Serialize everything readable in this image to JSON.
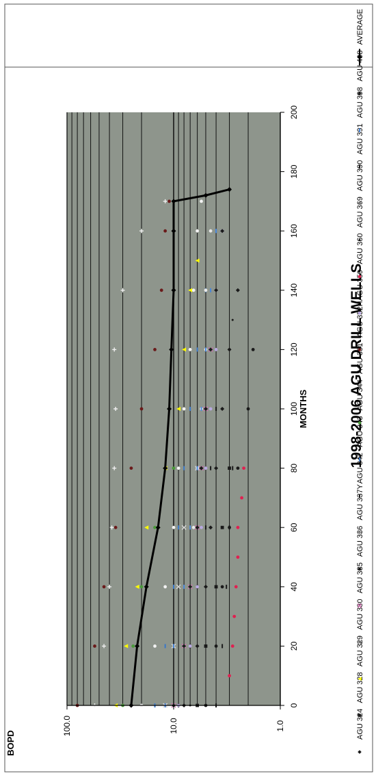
{
  "chart_data": {
    "type": "scatter",
    "title": "1998-2006 AGU DRILL WELLS",
    "xlabel": "MONTHS",
    "ylabel": "BOPD",
    "xlim": [
      0,
      200
    ],
    "ylim": [
      1,
      100
    ],
    "yscale": "log",
    "x_ticks": [
      "0",
      "20",
      "40",
      "60",
      "80",
      "100",
      "120",
      "140",
      "160",
      "180",
      "200"
    ],
    "y_ticks": [
      "1.0",
      "10.0",
      "100.0"
    ],
    "grid": "horizontal log gridlines",
    "legend_position": "right",
    "plot_background": "#8e958c",
    "series": [
      {
        "name": "AGU 324",
        "color": "#1a1a1a",
        "marker": "diamond",
        "x": [
          0,
          20,
          40,
          60,
          80,
          100,
          120,
          140
        ],
        "y": [
          8,
          6,
          5,
          4.5,
          4,
          3.5,
          3,
          2.5
        ]
      },
      {
        "name": "AGU 328",
        "color": "#1a1a1a",
        "marker": "square",
        "x": [
          0,
          20,
          40,
          60,
          80
        ],
        "y": [
          6,
          5,
          4,
          3.5,
          3
        ]
      },
      {
        "name": "AGU 329",
        "color": "#ffff00",
        "marker": "triangle",
        "x": [
          0,
          20,
          40,
          60,
          80,
          100,
          120,
          140,
          150
        ],
        "y": [
          35,
          28,
          22,
          18,
          12,
          9,
          8,
          7,
          6
        ]
      },
      {
        "name": "AGU 330",
        "color": "#d8d8d8",
        "marker": "x",
        "x": [
          0,
          20,
          40,
          60,
          80,
          100
        ],
        "y": [
          12,
          10,
          9,
          8,
          6,
          5
        ]
      },
      {
        "name": "AGU 335",
        "color": "#cc66aa",
        "marker": "x",
        "x": [
          0,
          20,
          40,
          60,
          80,
          100,
          120
        ],
        "y": [
          10,
          8,
          7,
          6,
          5.5,
          5,
          4.5
        ]
      },
      {
        "name": "AGU 336",
        "color": "#1a1a1a",
        "marker": "circle",
        "x": [
          0,
          20,
          40,
          60,
          80,
          100,
          120
        ],
        "y": [
          5,
          4,
          3.5,
          3,
          2.5,
          2,
          1.8
        ]
      },
      {
        "name": "AGU 337Y",
        "color": "#f0f0f0",
        "marker": "plus",
        "x": [
          0,
          20,
          40,
          60,
          80,
          100,
          120,
          140,
          160,
          170
        ],
        "y": [
          55,
          45,
          40,
          38,
          36,
          35,
          36,
          30,
          20,
          12
        ]
      },
      {
        "name": "AGU 342",
        "color": "#1a1a1a",
        "marker": "dash",
        "x": [
          0,
          20,
          40,
          60,
          80,
          100
        ],
        "y": [
          9,
          7,
          6,
          5,
          4.5,
          4
        ]
      },
      {
        "name": "AGU 343",
        "color": "#3a78c8",
        "marker": "dash",
        "x": [
          0,
          20,
          40,
          60,
          80,
          100,
          120,
          140,
          160
        ],
        "y": [
          15,
          12,
          10,
          9,
          8,
          7,
          6,
          5,
          4
        ]
      },
      {
        "name": "AGU 344",
        "color": "#4a9a3a",
        "marker": "circle",
        "x": [
          0,
          20,
          40,
          60,
          80
        ],
        "y": [
          30,
          24,
          20,
          15,
          10
        ]
      },
      {
        "name": "AGU 351",
        "color": "#e8e8e8",
        "marker": "circle",
        "x": [
          0,
          20,
          40,
          60,
          80,
          100,
          120,
          140,
          160
        ],
        "y": [
          10,
          8,
          7,
          6.5,
          6,
          5.5,
          5,
          5,
          4.5
        ]
      },
      {
        "name": "AGU 352H",
        "color": "#6a1a1a",
        "marker": "circle",
        "x": [
          0,
          20,
          40,
          60,
          80,
          100,
          120,
          140,
          160,
          170
        ],
        "y": [
          80,
          55,
          45,
          35,
          25,
          20,
          15,
          13,
          12,
          11
        ]
      },
      {
        "name": "AGU 359",
        "color": "#b8a8e0",
        "marker": "circle",
        "x": [
          0,
          20,
          40,
          60,
          80,
          100,
          120,
          140,
          160
        ],
        "y": [
          9,
          7,
          6,
          5.5,
          5,
          4.5,
          4,
          4,
          3.5
        ]
      },
      {
        "name": "AGU 360",
        "color": "#e02050",
        "marker": "circle",
        "x": [
          10,
          20,
          30,
          40,
          50,
          60,
          70,
          80
        ],
        "y": [
          3,
          2.8,
          2.7,
          2.6,
          2.5,
          2.5,
          2.3,
          2.2
        ]
      },
      {
        "name": "AGU 369",
        "color": "#1a1a1a",
        "marker": "dot",
        "x": [
          0,
          20,
          40,
          60,
          80,
          100,
          120,
          130
        ],
        "y": [
          7,
          6,
          5,
          4.5,
          4,
          3.5,
          3,
          2.8
        ]
      },
      {
        "name": "AGU 390",
        "color": "#f2f2f2",
        "marker": "circle",
        "x": [
          0,
          20,
          40,
          60,
          80,
          100,
          120,
          140,
          160,
          170
        ],
        "y": [
          20,
          15,
          12,
          10,
          9,
          8,
          7,
          6.5,
          6,
          5.5
        ]
      },
      {
        "name": "AGU 391",
        "color": "#1a1a1a",
        "marker": "dash",
        "x": [
          0,
          20,
          40,
          60,
          80
        ],
        "y": [
          4,
          3.5,
          3.2,
          3,
          2.8
        ]
      },
      {
        "name": "AGU 398",
        "color": "#4a86d8",
        "marker": "dash",
        "x": [
          0,
          20,
          40,
          60,
          80,
          100,
          120,
          140,
          160
        ],
        "y": [
          12,
          10,
          8,
          7,
          6,
          5.5,
          5,
          4.5,
          4
        ]
      },
      {
        "name": "AGU 408",
        "color": "#1a1a1a",
        "marker": "diamond",
        "x": [
          0,
          20,
          40,
          60,
          80,
          100,
          120,
          140,
          160
        ],
        "y": [
          10,
          8,
          7,
          6,
          5.5,
          5,
          4.5,
          4,
          3.5
        ]
      },
      {
        "name": "AVERAGE",
        "color": "#000000",
        "marker": "line-diamond",
        "line": true,
        "x": [
          0,
          20,
          40,
          60,
          80,
          100,
          120,
          140,
          160,
          170,
          172,
          174
        ],
        "y": [
          25,
          22,
          18,
          14,
          12,
          11,
          10.5,
          10,
          10,
          10,
          5,
          3
        ]
      }
    ]
  }
}
